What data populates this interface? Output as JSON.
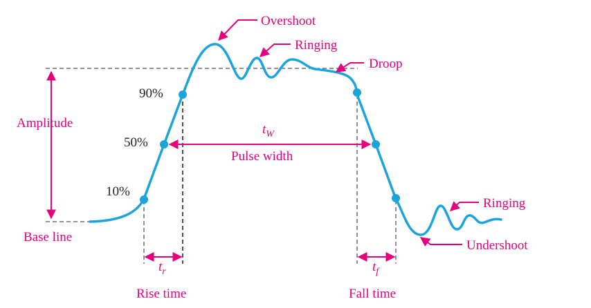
{
  "labels": {
    "overshoot": "Overshoot",
    "ringing_top": "Ringing",
    "droop": "Droop",
    "amplitude": "Amplitude",
    "base_line": "Base line",
    "p90": "90%",
    "p50": "50%",
    "p10": "10%",
    "tw_main": "t",
    "tw_sub": "W",
    "pulse_width": "Pulse width",
    "tr_main": "t",
    "tr_sub": "r",
    "tf_main": "t",
    "tf_sub": "f",
    "rise_time": "Rise time",
    "fall_time": "Fall time",
    "ringing_bottom": "Ringing",
    "undershoot": "Undershoot"
  },
  "colors": {
    "waveform": "#1ba3dc",
    "annotation": "#e6007e",
    "text": "#231f20"
  }
}
